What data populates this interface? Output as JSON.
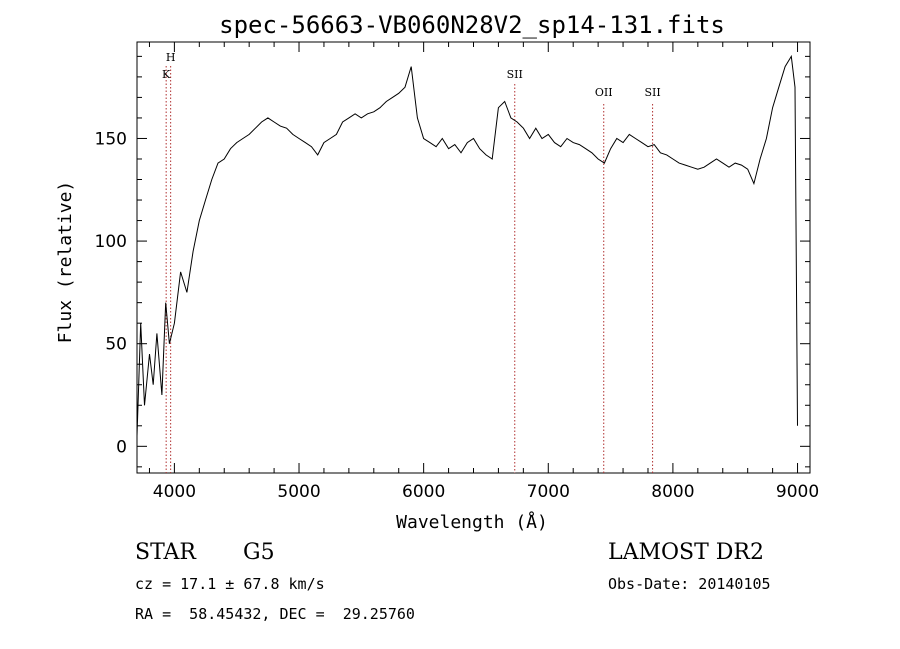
{
  "chart_data": {
    "type": "line",
    "title": "spec-56663-VB060N28V2_sp14-131.fits",
    "xlabel": "Wavelength (Å)",
    "ylabel": "Flux (relative)",
    "xlim": [
      3700,
      9100
    ],
    "ylim": [
      -13,
      197
    ],
    "x_ticks": [
      4000,
      5000,
      6000,
      7000,
      8000,
      9000
    ],
    "x_tick_labels": [
      "4000",
      "5000",
      "6000",
      "7000",
      "8000",
      "9000"
    ],
    "y_ticks": [
      0,
      50,
      100,
      150
    ],
    "y_tick_labels": [
      "0",
      "50",
      "100",
      "150"
    ],
    "grid": false,
    "line_color": "#000000",
    "marker_color": "#b03030",
    "spectral_lines": [
      {
        "label": "H",
        "wavelength": 3970
      },
      {
        "label": "K",
        "wavelength": 3934
      },
      {
        "label": "SII",
        "wavelength": 6731
      },
      {
        "label": "OII",
        "wavelength": 7445
      },
      {
        "label": "SII",
        "wavelength": 7837
      }
    ],
    "series": [
      {
        "x": [
          3700,
          3730,
          3760,
          3800,
          3830,
          3860,
          3900,
          3930,
          3960,
          4000,
          4050,
          4100,
          4150,
          4200,
          4250,
          4300,
          4350,
          4400,
          4450,
          4500,
          4550,
          4600,
          4650,
          4700,
          4750,
          4800,
          4850,
          4900,
          4950,
          5000,
          5050,
          5100,
          5150,
          5200,
          5250,
          5300,
          5350,
          5400,
          5450,
          5500,
          5550,
          5600,
          5650,
          5700,
          5750,
          5800,
          5850,
          5900,
          5950,
          6000,
          6050,
          6100,
          6150,
          6200,
          6250,
          6300,
          6350,
          6400,
          6450,
          6500,
          6550,
          6600,
          6650,
          6700,
          6750,
          6800,
          6850,
          6900,
          6950,
          7000,
          7050,
          7100,
          7150,
          7200,
          7250,
          7300,
          7350,
          7400,
          7450,
          7500,
          7550,
          7600,
          7650,
          7700,
          7750,
          7800,
          7850,
          7900,
          7950,
          8000,
          8050,
          8100,
          8150,
          8200,
          8250,
          8300,
          8350,
          8400,
          8450,
          8500,
          8550,
          8600,
          8650,
          8700,
          8750,
          8800,
          8850,
          8900,
          8950,
          8980,
          9000
        ],
        "y": [
          5,
          60,
          20,
          45,
          30,
          55,
          25,
          70,
          50,
          60,
          85,
          75,
          95,
          110,
          120,
          130,
          138,
          140,
          145,
          148,
          150,
          152,
          155,
          158,
          160,
          158,
          156,
          155,
          152,
          150,
          148,
          146,
          142,
          148,
          150,
          152,
          158,
          160,
          162,
          160,
          162,
          163,
          165,
          168,
          170,
          172,
          175,
          185,
          160,
          150,
          148,
          146,
          150,
          145,
          147,
          143,
          148,
          150,
          145,
          142,
          140,
          165,
          168,
          160,
          158,
          155,
          150,
          155,
          150,
          152,
          148,
          146,
          150,
          148,
          147,
          145,
          143,
          140,
          138,
          145,
          150,
          148,
          152,
          150,
          148,
          146,
          147,
          143,
          142,
          140,
          138,
          137,
          136,
          135,
          136,
          138,
          140,
          138,
          136,
          138,
          137,
          135,
          128,
          140,
          150,
          165,
          175,
          185,
          190,
          175,
          10
        ]
      }
    ]
  },
  "info": {
    "object_class": "STAR",
    "subclass": "G5",
    "survey": "LAMOST DR2",
    "cz": "cz = 17.1 ± 67.8 km/s",
    "obs_date": "Obs-Date: 20140105",
    "coords": "RA =  58.45432, DEC =  29.25760"
  }
}
